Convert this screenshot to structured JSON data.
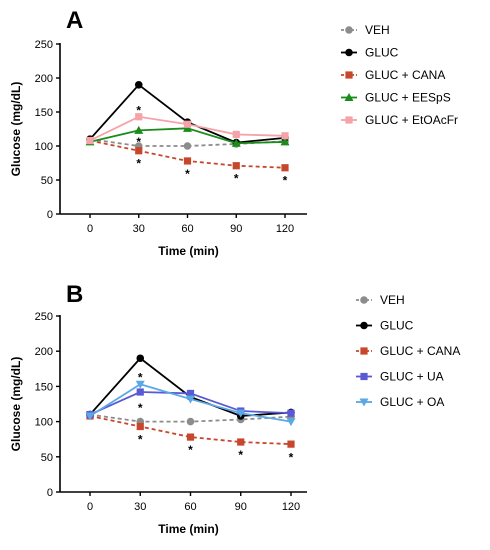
{
  "chart_data": [
    {
      "type": "line",
      "panel_label": "A",
      "xlabel": "Time (min)",
      "ylabel": "Glucose (mg/dL)",
      "x": [
        0,
        30,
        60,
        90,
        120
      ],
      "xticks": [
        "0",
        "30",
        "60",
        "90",
        "120"
      ],
      "ylim": [
        0,
        250
      ],
      "yticks": [
        "0",
        "50",
        "100",
        "150",
        "200",
        "250"
      ],
      "legend_position": "right",
      "series": [
        {
          "name": "VEH",
          "values": [
            110,
            100,
            100,
            103,
            107
          ],
          "color": "#8c8c8c",
          "marker": "circle",
          "dashed": true
        },
        {
          "name": "GLUC",
          "values": [
            110,
            190,
            135,
            105,
            112
          ],
          "color": "#000000",
          "marker": "circle",
          "dashed": false
        },
        {
          "name": "GLUC + CANA",
          "values": [
            108,
            93,
            78,
            71,
            68
          ],
          "color": "#c8462b",
          "marker": "square",
          "dashed": true
        },
        {
          "name": "GLUC + EESpS",
          "values": [
            106,
            123,
            126,
            104,
            106
          ],
          "color": "#1a8c1a",
          "marker": "triangle",
          "dashed": false
        },
        {
          "name": "GLUC + EtOAcFr",
          "values": [
            108,
            143,
            132,
            117,
            115
          ],
          "color": "#f4a3a8",
          "marker": "square",
          "dashed": false
        }
      ],
      "annotations": [
        {
          "text": "*",
          "x": 30,
          "y": 158
        },
        {
          "text": "*",
          "x": 30,
          "y": 112
        },
        {
          "text": "*",
          "x": 30,
          "y": 80
        },
        {
          "text": "*",
          "x": 60,
          "y": 65
        },
        {
          "text": "*",
          "x": 90,
          "y": 58
        },
        {
          "text": "*",
          "x": 120,
          "y": 55
        }
      ]
    },
    {
      "type": "line",
      "panel_label": "B",
      "xlabel": "Time (min)",
      "ylabel": "Glucose (mg/dL)",
      "x": [
        0,
        30,
        60,
        90,
        120
      ],
      "xticks": [
        "0",
        "30",
        "60",
        "90",
        "120"
      ],
      "ylim": [
        0,
        250
      ],
      "yticks": [
        "0",
        "50",
        "100",
        "150",
        "200",
        "250"
      ],
      "legend_position": "right",
      "series": [
        {
          "name": "VEH",
          "values": [
            110,
            100,
            100,
            103,
            107
          ],
          "color": "#8c8c8c",
          "marker": "circle",
          "dashed": true
        },
        {
          "name": "GLUC",
          "values": [
            110,
            190,
            135,
            108,
            113
          ],
          "color": "#000000",
          "marker": "circle",
          "dashed": false
        },
        {
          "name": "GLUC + CANA",
          "values": [
            108,
            93,
            78,
            71,
            68
          ],
          "color": "#c8462b",
          "marker": "square",
          "dashed": true
        },
        {
          "name": "GLUC + UA",
          "values": [
            110,
            142,
            140,
            115,
            112
          ],
          "color": "#5a5ad6",
          "marker": "square",
          "dashed": false
        },
        {
          "name": "GLUC + OA",
          "values": [
            108,
            153,
            132,
            112,
            100
          ],
          "color": "#5aa8e6",
          "marker": "triangle-down",
          "dashed": false
        }
      ],
      "annotations": [
        {
          "text": "*",
          "x": 30,
          "y": 168
        },
        {
          "text": "*",
          "x": 30,
          "y": 125
        },
        {
          "text": "*",
          "x": 30,
          "y": 80
        },
        {
          "text": "*",
          "x": 60,
          "y": 65
        },
        {
          "text": "*",
          "x": 90,
          "y": 58
        },
        {
          "text": "*",
          "x": 120,
          "y": 55
        }
      ]
    }
  ]
}
